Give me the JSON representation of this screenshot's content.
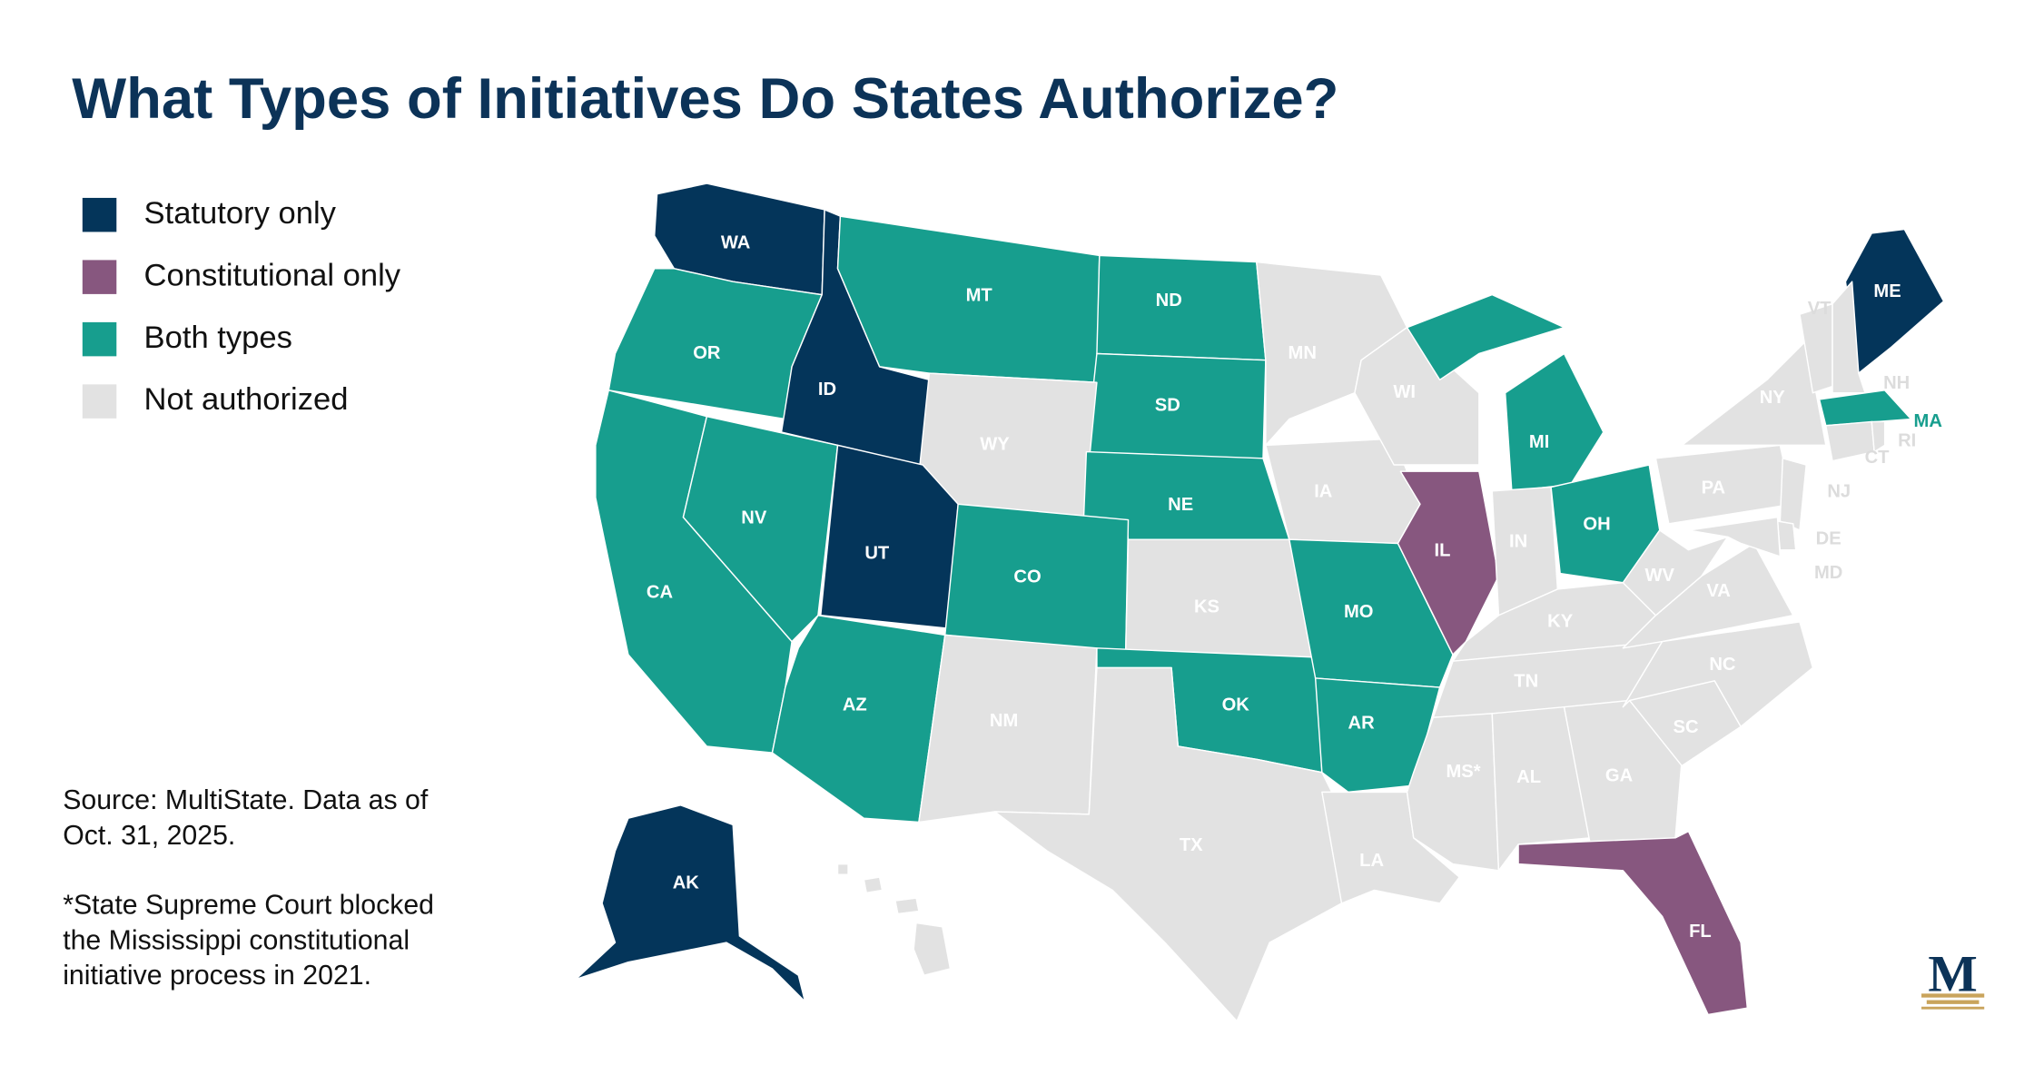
{
  "title": "What Types of Initiatives Do States Authorize?",
  "legend": [
    {
      "label": "Statutory only",
      "color": "#04355a"
    },
    {
      "label": "Constitutional only",
      "color": "#87577f"
    },
    {
      "label": "Both types",
      "color": "#179e8e"
    },
    {
      "label": "Not authorized",
      "color": "#e2e2e2"
    }
  ],
  "states": [
    {
      "abbr": "WA",
      "category": 0
    },
    {
      "abbr": "OR",
      "category": 2
    },
    {
      "abbr": "ID",
      "category": 0
    },
    {
      "abbr": "MT",
      "category": 2
    },
    {
      "abbr": "ND",
      "category": 2
    },
    {
      "abbr": "SD",
      "category": 2
    },
    {
      "abbr": "WY",
      "category": 3
    },
    {
      "abbr": "NE",
      "category": 2
    },
    {
      "abbr": "CA",
      "category": 2
    },
    {
      "abbr": "NV",
      "category": 2
    },
    {
      "abbr": "UT",
      "category": 0
    },
    {
      "abbr": "CO",
      "category": 2
    },
    {
      "abbr": "AZ",
      "category": 2
    },
    {
      "abbr": "NM",
      "category": 3
    },
    {
      "abbr": "KS",
      "category": 3
    },
    {
      "abbr": "OK",
      "category": 2
    },
    {
      "abbr": "TX",
      "category": 3
    },
    {
      "abbr": "MN",
      "category": 3
    },
    {
      "abbr": "IA",
      "category": 3
    },
    {
      "abbr": "MO",
      "category": 2
    },
    {
      "abbr": "AR",
      "category": 2
    },
    {
      "abbr": "LA",
      "category": 3
    },
    {
      "abbr": "WI",
      "category": 3
    },
    {
      "abbr": "IL",
      "category": 1
    },
    {
      "abbr": "MI",
      "category": 2
    },
    {
      "abbr": "IN",
      "category": 3
    },
    {
      "abbr": "OH",
      "category": 2
    },
    {
      "abbr": "KY",
      "category": 3
    },
    {
      "abbr": "TN",
      "category": 3
    },
    {
      "abbr": "MS*",
      "category": 3
    },
    {
      "abbr": "AL",
      "category": 3
    },
    {
      "abbr": "GA",
      "category": 3
    },
    {
      "abbr": "FL",
      "category": 1
    },
    {
      "abbr": "SC",
      "category": 3
    },
    {
      "abbr": "NC",
      "category": 3
    },
    {
      "abbr": "VA",
      "category": 3
    },
    {
      "abbr": "WV",
      "category": 3
    },
    {
      "abbr": "PA",
      "category": 3
    },
    {
      "abbr": "NY",
      "category": 3
    },
    {
      "abbr": "ME",
      "category": 0
    },
    {
      "abbr": "MA",
      "category": 2
    },
    {
      "abbr": "VT",
      "category": 3
    },
    {
      "abbr": "NH",
      "category": 3
    },
    {
      "abbr": "CT",
      "category": 3
    },
    {
      "abbr": "RI",
      "category": 3
    },
    {
      "abbr": "NJ",
      "category": 3
    },
    {
      "abbr": "DE",
      "category": 3
    },
    {
      "abbr": "MD",
      "category": 3
    },
    {
      "abbr": "AK",
      "category": 0
    },
    {
      "abbr": "HI",
      "category": 3
    }
  ],
  "source": [
    "Source: MultiState. Data as of",
    "Oct. 31, 2025."
  ],
  "footnote": [
    "*State Supreme Court blocked",
    "the Mississippi constitutional",
    "initiative process in 2021."
  ],
  "logo": "M"
}
